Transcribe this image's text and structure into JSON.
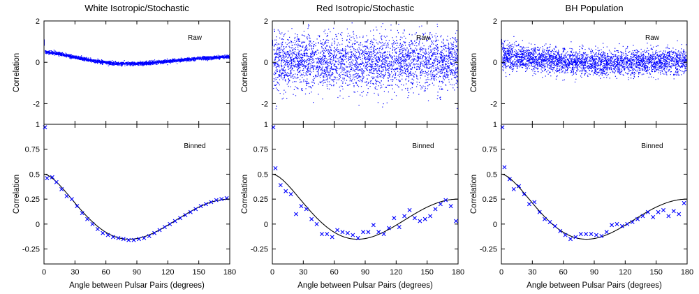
{
  "colors": {
    "data": "#0000ff",
    "theory": "#000000",
    "axes": "#000000"
  },
  "chart_data": [
    {
      "type": "scatter",
      "title": "White Isotropic/Stochastic",
      "raw": {
        "label": "Raw",
        "ylabel": "Correlation",
        "xlim": [
          0,
          180
        ],
        "ylim": [
          -3,
          2
        ],
        "yticks": [
          -2,
          0,
          2
        ],
        "noise_sd": 0.04,
        "trend": [
          [
            0,
            0.5
          ],
          [
            10,
            0.45
          ],
          [
            30,
            0.25
          ],
          [
            50,
            0.05
          ],
          [
            70,
            -0.06
          ],
          [
            85,
            -0.07
          ],
          [
            100,
            -0.05
          ],
          [
            120,
            0.05
          ],
          [
            150,
            0.18
          ],
          [
            180,
            0.28
          ]
        ]
      },
      "binned": {
        "label": "Binned",
        "ylabel": "Correlation",
        "xlabel": "Angle between Pulsar Pairs (degrees)",
        "xlim": [
          0,
          180
        ],
        "ylim": [
          -0.4,
          1
        ],
        "yticks": [
          -0.25,
          0,
          0.25,
          0.5,
          0.75,
          1
        ],
        "xticks": [
          0,
          30,
          60,
          90,
          120,
          150,
          180
        ],
        "points": [
          [
            1,
            0.97
          ],
          [
            3,
            0.46
          ],
          [
            8,
            0.47
          ],
          [
            12,
            0.42
          ],
          [
            17,
            0.35
          ],
          [
            22,
            0.28
          ],
          [
            27,
            0.25
          ],
          [
            32,
            0.18
          ],
          [
            37,
            0.11
          ],
          [
            42,
            0.05
          ],
          [
            47,
            0.0
          ],
          [
            52,
            -0.05
          ],
          [
            57,
            -0.09
          ],
          [
            62,
            -0.11
          ],
          [
            67,
            -0.13
          ],
          [
            72,
            -0.14
          ],
          [
            77,
            -0.15
          ],
          [
            82,
            -0.16
          ],
          [
            87,
            -0.16
          ],
          [
            92,
            -0.15
          ],
          [
            97,
            -0.14
          ],
          [
            102,
            -0.12
          ],
          [
            107,
            -0.09
          ],
          [
            112,
            -0.06
          ],
          [
            117,
            -0.03
          ],
          [
            122,
            0.0
          ],
          [
            127,
            0.03
          ],
          [
            132,
            0.06
          ],
          [
            137,
            0.09
          ],
          [
            142,
            0.12
          ],
          [
            147,
            0.15
          ],
          [
            152,
            0.18
          ],
          [
            157,
            0.2
          ],
          [
            162,
            0.22
          ],
          [
            167,
            0.24
          ],
          [
            172,
            0.25
          ],
          [
            177,
            0.26
          ]
        ]
      }
    },
    {
      "type": "scatter",
      "title": "Red Isotropic/Stochastic",
      "raw": {
        "label": "Raw",
        "ylabel": "Correlation",
        "xlim": [
          0,
          180
        ],
        "ylim": [
          -3,
          2
        ],
        "yticks": [
          -2,
          0,
          2
        ],
        "noise_sd": 0.65,
        "trend": [
          [
            0,
            0.1
          ],
          [
            90,
            0.0
          ],
          [
            180,
            0.05
          ]
        ]
      },
      "binned": {
        "label": "Binned",
        "ylabel": "Correlation",
        "xlabel": "Angle between Pulsar Pairs (degrees)",
        "xlim": [
          0,
          180
        ],
        "ylim": [
          -0.4,
          1
        ],
        "yticks": [
          -0.25,
          0,
          0.25,
          0.5,
          0.75,
          1
        ],
        "xticks": [
          0,
          30,
          60,
          90,
          120,
          150,
          180
        ],
        "points": [
          [
            1,
            0.97
          ],
          [
            3,
            0.56
          ],
          [
            8,
            0.39
          ],
          [
            13,
            0.33
          ],
          [
            18,
            0.3
          ],
          [
            23,
            0.1
          ],
          [
            28,
            0.18
          ],
          [
            33,
            0.15
          ],
          [
            38,
            0.05
          ],
          [
            43,
            0.0
          ],
          [
            48,
            -0.1
          ],
          [
            53,
            -0.1
          ],
          [
            58,
            -0.13
          ],
          [
            63,
            -0.06
          ],
          [
            68,
            -0.08
          ],
          [
            73,
            -0.09
          ],
          [
            78,
            -0.11
          ],
          [
            83,
            -0.14
          ],
          [
            88,
            -0.08
          ],
          [
            93,
            -0.08
          ],
          [
            98,
            -0.01
          ],
          [
            103,
            -0.08
          ],
          [
            108,
            -0.1
          ],
          [
            113,
            -0.04
          ],
          [
            118,
            0.06
          ],
          [
            123,
            -0.03
          ],
          [
            128,
            0.08
          ],
          [
            133,
            0.14
          ],
          [
            138,
            0.06
          ],
          [
            143,
            0.03
          ],
          [
            148,
            0.05
          ],
          [
            153,
            0.08
          ],
          [
            158,
            0.15
          ],
          [
            163,
            0.2
          ],
          [
            168,
            0.24
          ],
          [
            173,
            0.18
          ],
          [
            178,
            0.03
          ]
        ]
      }
    },
    {
      "type": "scatter",
      "title": "BH Population",
      "raw": {
        "label": "Raw",
        "ylabel": "Correlation",
        "xlim": [
          0,
          180
        ],
        "ylim": [
          -3,
          2
        ],
        "yticks": [
          -2,
          0,
          2
        ],
        "noise_sd": 0.3,
        "trend": [
          [
            0,
            0.3
          ],
          [
            90,
            -0.05
          ],
          [
            180,
            0.1
          ]
        ]
      },
      "binned": {
        "label": "Binned",
        "ylabel": "Correlation",
        "xlabel": "Angle between Pulsar Pairs (degrees)",
        "xlim": [
          0,
          180
        ],
        "ylim": [
          -0.4,
          1
        ],
        "yticks": [
          -0.25,
          0,
          0.25,
          0.5,
          0.75,
          1
        ],
        "xticks": [
          0,
          30,
          60,
          90,
          120,
          150,
          180
        ],
        "points": [
          [
            1,
            0.97
          ],
          [
            3,
            0.57
          ],
          [
            8,
            0.45
          ],
          [
            12,
            0.35
          ],
          [
            17,
            0.38
          ],
          [
            22,
            0.3
          ],
          [
            27,
            0.2
          ],
          [
            32,
            0.22
          ],
          [
            37,
            0.12
          ],
          [
            42,
            0.05
          ],
          [
            47,
            0.02
          ],
          [
            52,
            -0.02
          ],
          [
            57,
            -0.07
          ],
          [
            62,
            -0.11
          ],
          [
            67,
            -0.15
          ],
          [
            72,
            -0.13
          ],
          [
            77,
            -0.1
          ],
          [
            82,
            -0.1
          ],
          [
            87,
            -0.1
          ],
          [
            92,
            -0.11
          ],
          [
            97,
            -0.12
          ],
          [
            102,
            -0.08
          ],
          [
            107,
            -0.01
          ],
          [
            112,
            0.0
          ],
          [
            117,
            -0.02
          ],
          [
            122,
            0.0
          ],
          [
            127,
            0.02
          ],
          [
            132,
            0.05
          ],
          [
            137,
            0.08
          ],
          [
            142,
            0.12
          ],
          [
            147,
            0.07
          ],
          [
            152,
            0.12
          ],
          [
            157,
            0.14
          ],
          [
            162,
            0.08
          ],
          [
            167,
            0.13
          ],
          [
            172,
            0.1
          ],
          [
            177,
            0.21
          ]
        ]
      }
    }
  ]
}
